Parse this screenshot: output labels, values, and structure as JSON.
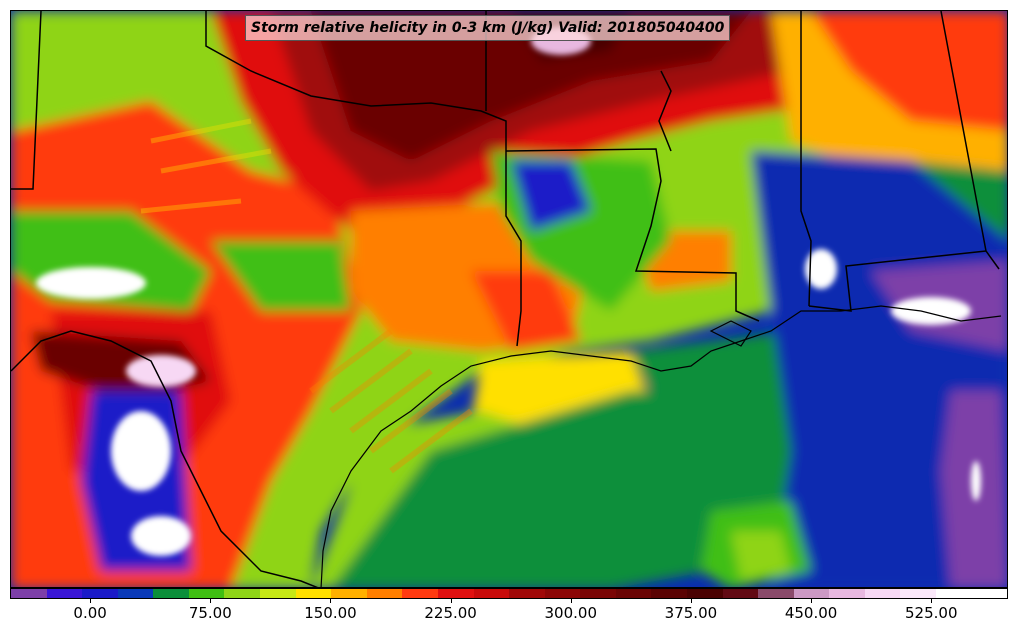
{
  "title": "Storm relative helicity in 0-3 km (J/kg) Valid: 201805040400",
  "colorbar": {
    "colors": [
      "#7d3fa8",
      "#3a16d6",
      "#1b1bc8",
      "#0a3ab8",
      "#0b8f3a",
      "#3fbf12",
      "#8fd418",
      "#c6e816",
      "#ffe000",
      "#ffb000",
      "#ff7f00",
      "#ff3a10",
      "#e01010",
      "#c80a0a",
      "#a00808",
      "#8c0606",
      "#7a0505",
      "#6a0404",
      "#5a0303",
      "#4a0202",
      "#620a14",
      "#8a4a6a",
      "#cc99c4",
      "#e8b8e0",
      "#f7d8f4",
      "#fbe8fa",
      "#ffffff",
      "#ffffff"
    ],
    "labels": [
      {
        "text": "0.00",
        "pos": 0.0803
      },
      {
        "text": "75.00",
        "pos": 0.2007
      },
      {
        "text": "150.00",
        "pos": 0.3211
      },
      {
        "text": "225.00",
        "pos": 0.4415
      },
      {
        "text": "300.00",
        "pos": 0.5619
      },
      {
        "text": "375.00",
        "pos": 0.6823
      },
      {
        "text": "450.00",
        "pos": 0.8027
      },
      {
        "text": "525.00",
        "pos": 0.9231
      }
    ]
  }
}
